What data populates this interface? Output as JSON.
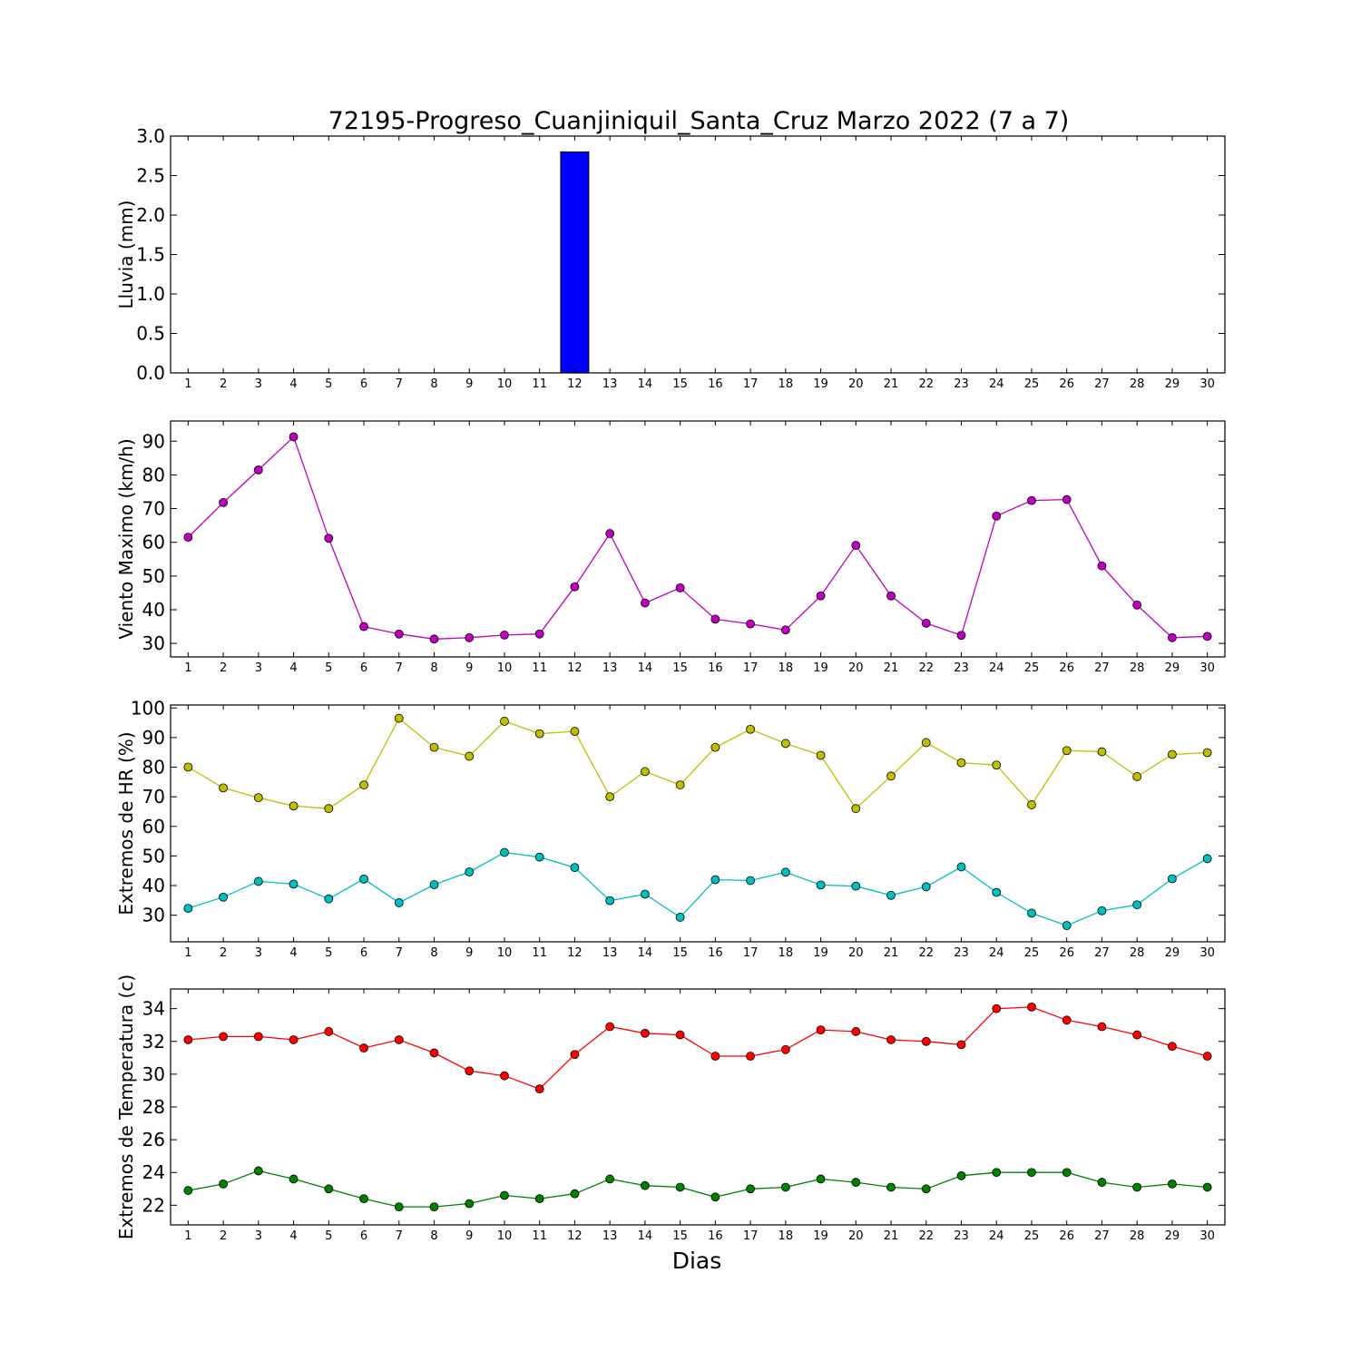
{
  "title": "72195-Progreso_Cuanjiniquil_Santa_Cruz Marzo 2022  (7 a 7)",
  "xlabel": "Dias",
  "chart_data": [
    {
      "type": "bar",
      "ylabel": "Lluvia (mm)",
      "ylim": [
        0,
        3.0
      ],
      "yticks": [
        0.0,
        0.5,
        1.0,
        1.5,
        2.0,
        2.5,
        3.0
      ],
      "ytick_labels": [
        "0.0",
        "0.5",
        "1.0",
        "1.5",
        "2.0",
        "2.5",
        "3.0"
      ],
      "x": [
        1,
        2,
        3,
        4,
        5,
        6,
        7,
        8,
        9,
        10,
        11,
        12,
        13,
        14,
        15,
        16,
        17,
        18,
        19,
        20,
        21,
        22,
        23,
        24,
        25,
        26,
        27,
        28,
        29,
        30
      ],
      "series": [
        {
          "color": "#0000ff",
          "values": [
            0,
            0,
            0,
            0,
            0,
            0,
            0,
            0,
            0,
            0,
            0,
            2.8,
            0,
            0,
            0,
            0,
            0,
            0,
            0,
            0,
            0,
            0,
            0,
            0,
            0,
            0,
            0,
            0,
            0,
            0
          ]
        }
      ]
    },
    {
      "type": "line",
      "ylabel": "Viento Maximo (km/h)",
      "ylim": [
        26,
        96
      ],
      "yticks": [
        30,
        40,
        50,
        60,
        70,
        80,
        90
      ],
      "ytick_labels": [
        "30",
        "40",
        "50",
        "60",
        "70",
        "80",
        "90"
      ],
      "x": [
        1,
        2,
        3,
        4,
        5,
        6,
        7,
        8,
        9,
        10,
        11,
        12,
        13,
        14,
        15,
        16,
        17,
        18,
        19,
        20,
        21,
        22,
        23,
        24,
        25,
        26,
        27,
        28,
        29,
        30
      ],
      "series": [
        {
          "color": "#bf00bf",
          "values": [
            61.5,
            71.8,
            81.5,
            91.3,
            61.2,
            35.0,
            32.8,
            31.3,
            31.7,
            32.5,
            32.8,
            46.8,
            62.6,
            42.0,
            46.5,
            37.2,
            35.8,
            34.0,
            44.1,
            59.1,
            44.1,
            36.0,
            32.4,
            67.8,
            72.4,
            72.7,
            53.0,
            41.4,
            31.7,
            32.1
          ]
        }
      ]
    },
    {
      "type": "line",
      "ylabel": "Extremos de HR (%)",
      "ylim": [
        21,
        101
      ],
      "yticks": [
        30,
        40,
        50,
        60,
        70,
        80,
        90,
        100
      ],
      "ytick_labels": [
        "30",
        "40",
        "50",
        "60",
        "70",
        "80",
        "90",
        "100"
      ],
      "x": [
        1,
        2,
        3,
        4,
        5,
        6,
        7,
        8,
        9,
        10,
        11,
        12,
        13,
        14,
        15,
        16,
        17,
        18,
        19,
        20,
        21,
        22,
        23,
        24,
        25,
        26,
        27,
        28,
        29,
        30
      ],
      "series": [
        {
          "color": "#bfbf00",
          "values": [
            80.0,
            73.0,
            69.7,
            66.9,
            66.0,
            74.0,
            96.5,
            86.7,
            83.7,
            95.5,
            91.3,
            92.1,
            70.0,
            78.5,
            74.0,
            86.7,
            92.8,
            88.0,
            84.0,
            66.0,
            77.0,
            88.3,
            81.5,
            80.7,
            67.3,
            85.6,
            85.2,
            76.8,
            84.3,
            84.9
          ]
        },
        {
          "color": "#00bfbf",
          "values": [
            32.3,
            36.1,
            41.4,
            40.5,
            35.5,
            42.2,
            34.2,
            40.3,
            44.6,
            51.2,
            49.6,
            46.1,
            34.9,
            37.1,
            29.3,
            42.0,
            41.7,
            44.5,
            40.2,
            39.8,
            36.7,
            39.6,
            46.3,
            37.7,
            30.7,
            26.5,
            31.5,
            33.5,
            42.3,
            49.1
          ]
        }
      ]
    },
    {
      "type": "line",
      "ylabel": "Extremos de Temperatura (c)",
      "ylim": [
        20.8,
        35.2
      ],
      "yticks": [
        22,
        24,
        26,
        28,
        30,
        32,
        34
      ],
      "ytick_labels": [
        "22",
        "24",
        "26",
        "28",
        "30",
        "32",
        "34"
      ],
      "x": [
        1,
        2,
        3,
        4,
        5,
        6,
        7,
        8,
        9,
        10,
        11,
        12,
        13,
        14,
        15,
        16,
        17,
        18,
        19,
        20,
        21,
        22,
        23,
        24,
        25,
        26,
        27,
        28,
        29,
        30
      ],
      "series": [
        {
          "color": "#ff0000",
          "values": [
            32.1,
            32.3,
            32.3,
            32.1,
            32.6,
            31.6,
            32.1,
            31.3,
            30.2,
            29.9,
            29.1,
            31.2,
            32.9,
            32.5,
            32.4,
            31.1,
            31.1,
            31.5,
            32.7,
            32.6,
            32.1,
            32.0,
            31.8,
            34.0,
            34.1,
            33.3,
            32.9,
            32.4,
            31.7,
            31.1
          ]
        },
        {
          "color": "#008000",
          "values": [
            22.9,
            23.3,
            24.1,
            23.6,
            23.0,
            22.4,
            21.9,
            21.9,
            22.1,
            22.6,
            22.4,
            22.7,
            23.6,
            23.2,
            23.1,
            22.5,
            23.0,
            23.1,
            23.6,
            23.4,
            23.1,
            23.0,
            23.8,
            24.0,
            24.0,
            24.0,
            23.4,
            23.1,
            23.3,
            23.1
          ]
        }
      ]
    }
  ]
}
